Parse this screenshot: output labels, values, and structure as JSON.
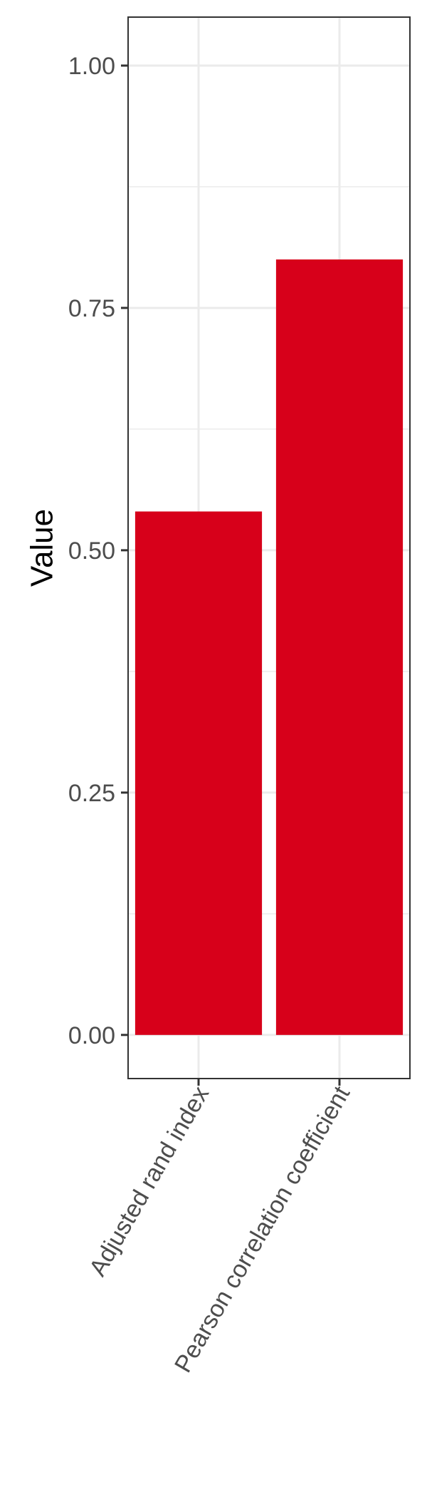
{
  "chart_data": {
    "type": "bar",
    "categories": [
      "Adjusted rand index",
      "Pearson correlation coefficient"
    ],
    "values": [
      0.54,
      0.8
    ],
    "title": "",
    "xlabel": "",
    "ylabel": "Value",
    "ylim": [
      -0.045,
      1.05
    ],
    "yticks": [
      0,
      0.25,
      0.5,
      0.75,
      1
    ],
    "ytick_labels": [
      "0.00",
      "0.25",
      "0.50",
      "0.75",
      "1.00"
    ],
    "minor_yticks": [
      0.125,
      0.375,
      0.625,
      0.875
    ],
    "grid": true,
    "bar_color": "#d7001a",
    "grid_color": "#ebebeb",
    "panel_border_color": "#333333"
  }
}
